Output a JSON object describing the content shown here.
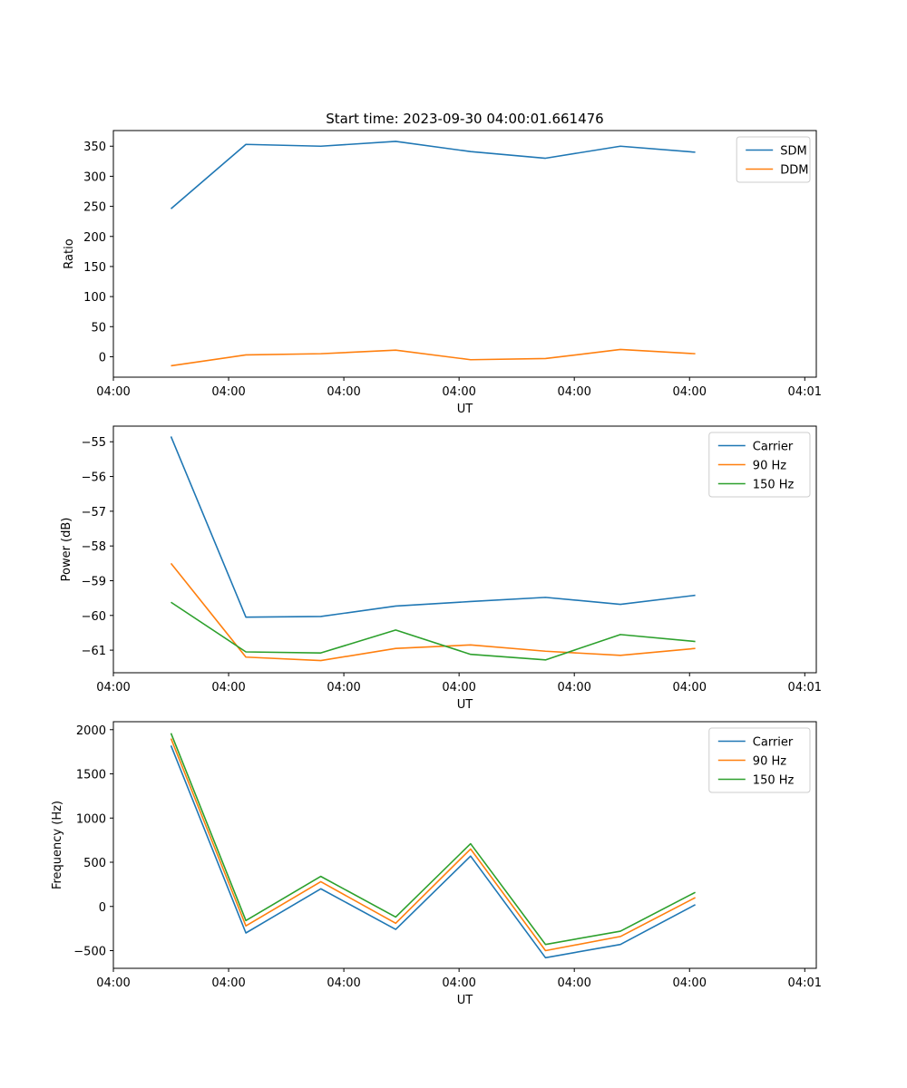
{
  "chart_data": [
    {
      "type": "line",
      "title": "Start time: 2023-09-30 04:00:01.661476",
      "xlabel": "UT",
      "ylabel": "Ratio",
      "x_ticks": [
        "04:00",
        "04:00",
        "04:00",
        "04:00",
        "04:00",
        "04:00",
        "04:01"
      ],
      "xlim": [
        0,
        12.2
      ],
      "ylim": [
        -34,
        376
      ],
      "y_ticks": [
        0,
        50,
        100,
        150,
        200,
        250,
        300,
        350
      ],
      "y_tick_labels": [
        "0",
        "50",
        "100",
        "150",
        "200",
        "250",
        "300",
        "350"
      ],
      "legend": "top-right",
      "x": [
        1,
        2.3,
        3.6,
        4.9,
        6.2,
        7.5,
        8.8,
        10.1
      ],
      "series": [
        {
          "name": "SDM",
          "color": "#1f77b4",
          "values": [
            246,
            353,
            350,
            358,
            341,
            330,
            350,
            340
          ]
        },
        {
          "name": "DDM",
          "color": "#ff7f0e",
          "values": [
            -15,
            3,
            5,
            11,
            -5,
            -3,
            12,
            5
          ]
        }
      ]
    },
    {
      "type": "line",
      "title": "",
      "xlabel": "UT",
      "ylabel": "Power (dB)",
      "x_ticks": [
        "04:00",
        "04:00",
        "04:00",
        "04:00",
        "04:00",
        "04:00",
        "04:01"
      ],
      "xlim": [
        0,
        12.2
      ],
      "ylim": [
        -61.65,
        -54.55
      ],
      "y_ticks": [
        -61,
        -60,
        -59,
        -58,
        -57,
        -56,
        -55
      ],
      "y_tick_labels": [
        "−61",
        "−60",
        "−59",
        "−58",
        "−57",
        "−56",
        "−55"
      ],
      "legend": "top-right",
      "x": [
        1,
        2.3,
        3.6,
        4.9,
        6.2,
        7.5,
        8.8,
        10.1
      ],
      "series": [
        {
          "name": "Carrier",
          "color": "#1f77b4",
          "values": [
            -54.85,
            -60.05,
            -60.03,
            -59.73,
            -59.6,
            -59.48,
            -59.68,
            -59.42
          ]
        },
        {
          "name": "90 Hz",
          "color": "#ff7f0e",
          "values": [
            -58.5,
            -61.2,
            -61.3,
            -60.95,
            -60.85,
            -61.03,
            -61.15,
            -60.95
          ]
        },
        {
          "name": "150 Hz",
          "color": "#2ca02c",
          "values": [
            -59.62,
            -61.05,
            -61.08,
            -60.42,
            -61.12,
            -61.28,
            -60.55,
            -60.75
          ]
        }
      ]
    },
    {
      "type": "line",
      "title": "",
      "xlabel": "UT",
      "ylabel": "Frequency (Hz)",
      "x_ticks": [
        "04:00",
        "04:00",
        "04:00",
        "04:00",
        "04:00",
        "04:00",
        "04:01"
      ],
      "xlim": [
        0,
        12.2
      ],
      "ylim": [
        -700,
        2090
      ],
      "y_ticks": [
        -500,
        0,
        500,
        1000,
        1500,
        2000
      ],
      "y_tick_labels": [
        "−500",
        "0",
        "500",
        "1000",
        "1500",
        "2000"
      ],
      "legend": "top-right",
      "x": [
        1,
        2.3,
        3.6,
        4.9,
        6.2,
        7.5,
        8.8,
        10.1
      ],
      "series": [
        {
          "name": "Carrier",
          "color": "#1f77b4",
          "values": [
            1820,
            -300,
            200,
            -260,
            570,
            -580,
            -430,
            20
          ]
        },
        {
          "name": "90 Hz",
          "color": "#ff7f0e",
          "values": [
            1900,
            -220,
            280,
            -190,
            650,
            -500,
            -340,
            100
          ]
        },
        {
          "name": "150 Hz",
          "color": "#2ca02c",
          "values": [
            1960,
            -160,
            340,
            -120,
            710,
            -430,
            -280,
            160
          ]
        }
      ]
    }
  ]
}
